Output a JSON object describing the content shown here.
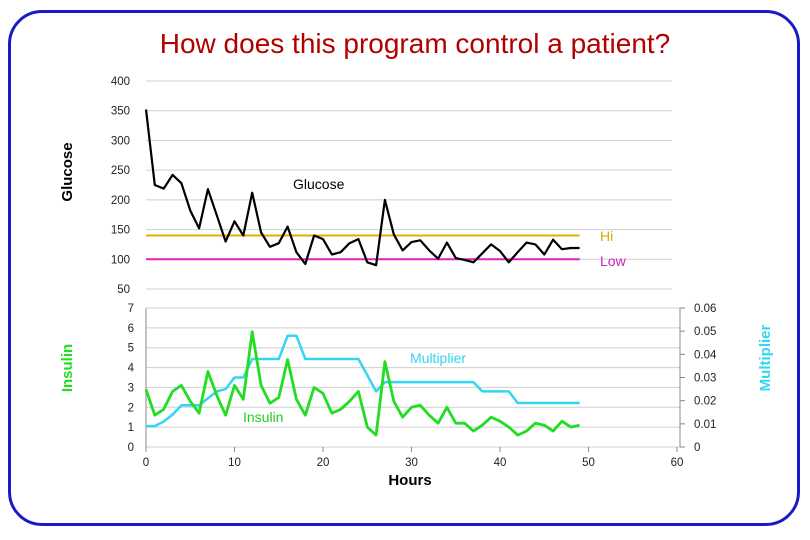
{
  "title": "How does this program control a patient?",
  "colors": {
    "title": "#b00000",
    "frame": "#1a1ac8",
    "glucose": "#000000",
    "hi": "#e0b000",
    "low": "#e020c0",
    "insulin": "#22dd22",
    "multiplier": "#33d6f0"
  },
  "chart_data": [
    {
      "type": "line",
      "ylabel": "Glucose",
      "ylim": [
        50,
        400
      ],
      "yticks": [
        "50",
        "100",
        "150",
        "200",
        "250",
        "300",
        "350",
        "400"
      ],
      "grid": true,
      "series": [
        {
          "name": "Glucose",
          "x": [
            0,
            1,
            2,
            3,
            4,
            5,
            6,
            7,
            8,
            9,
            10,
            11,
            12,
            13,
            14,
            15,
            16,
            17,
            18,
            19,
            20,
            21,
            22,
            23,
            24,
            25,
            26,
            27,
            28,
            29,
            30,
            31,
            32,
            33,
            34,
            35,
            36,
            37,
            38,
            39,
            40,
            41,
            42,
            43,
            44,
            45,
            46,
            47,
            48,
            49
          ],
          "y": [
            352,
            225,
            219,
            242,
            228,
            182,
            152,
            218,
            174,
            130,
            164,
            140,
            212,
            145,
            121,
            127,
            155,
            112,
            92,
            140,
            134,
            108,
            112,
            127,
            134,
            95,
            90,
            200,
            142,
            115,
            129,
            132,
            115,
            101,
            128,
            102,
            99,
            95,
            110,
            125,
            114,
            95,
            112,
            128,
            125,
            108,
            133,
            117,
            119,
            119
          ]
        },
        {
          "name": "Hi",
          "value": 140,
          "x": [
            0,
            49
          ]
        },
        {
          "name": "Low",
          "value": 100,
          "x": [
            0,
            49
          ]
        }
      ]
    },
    {
      "type": "line",
      "ylabel": "Insulin",
      "y2label": "Multiplier",
      "xlabel": "Hours",
      "xlim": [
        0,
        60
      ],
      "xticks": [
        "0",
        "10",
        "20",
        "30",
        "40",
        "50",
        "60"
      ],
      "ylim": [
        0,
        7
      ],
      "yticks": [
        "0",
        "1",
        "2",
        "3",
        "4",
        "5",
        "6",
        "7"
      ],
      "y2lim": [
        0,
        0.06
      ],
      "y2ticks": [
        "0",
        "0.01",
        "0.02",
        "0.03",
        "0.04",
        "0.05",
        "0.06"
      ],
      "grid": true,
      "series": [
        {
          "name": "Insulin",
          "axis": "left",
          "x": [
            0,
            1,
            2,
            3,
            4,
            5,
            6,
            7,
            8,
            9,
            10,
            11,
            12,
            13,
            14,
            15,
            16,
            17,
            18,
            19,
            20,
            21,
            22,
            23,
            24,
            25,
            26,
            27,
            28,
            29,
            30,
            31,
            32,
            33,
            34,
            35,
            36,
            37,
            38,
            39,
            40,
            41,
            42,
            43,
            44,
            45,
            46,
            47,
            48,
            49
          ],
          "y": [
            2.9,
            1.6,
            1.9,
            2.8,
            3.1,
            2.3,
            1.7,
            3.8,
            2.6,
            1.6,
            3.1,
            2.4,
            5.8,
            3.1,
            2.2,
            2.5,
            4.4,
            2.4,
            1.6,
            3.0,
            2.7,
            1.7,
            1.9,
            2.3,
            2.8,
            1.0,
            0.6,
            4.3,
            2.3,
            1.5,
            2.0,
            2.1,
            1.6,
            1.2,
            2.0,
            1.2,
            1.2,
            0.8,
            1.1,
            1.5,
            1.3,
            1.0,
            0.6,
            0.8,
            1.2,
            1.1,
            0.8,
            1.3,
            1.0,
            1.1
          ]
        },
        {
          "name": "Multiplier",
          "axis": "right",
          "x": [
            0,
            1,
            2,
            3,
            4,
            5,
            6,
            7,
            8,
            9,
            10,
            11,
            12,
            13,
            14,
            15,
            16,
            17,
            18,
            19,
            20,
            21,
            22,
            23,
            24,
            25,
            26,
            27,
            28,
            29,
            30,
            31,
            32,
            33,
            34,
            35,
            36,
            37,
            38,
            39,
            40,
            41,
            42,
            43,
            44,
            45,
            46,
            47,
            48,
            49
          ],
          "y": [
            0.009,
            0.009,
            0.011,
            0.014,
            0.018,
            0.018,
            0.018,
            0.021,
            0.024,
            0.025,
            0.03,
            0.03,
            0.038,
            0.038,
            0.038,
            0.038,
            0.048,
            0.048,
            0.038,
            0.038,
            0.038,
            0.038,
            0.038,
            0.038,
            0.038,
            0.031,
            0.024,
            0.028,
            0.028,
            0.028,
            0.028,
            0.028,
            0.028,
            0.028,
            0.028,
            0.028,
            0.028,
            0.028,
            0.024,
            0.024,
            0.024,
            0.024,
            0.019,
            0.019,
            0.019,
            0.019,
            0.019,
            0.019,
            0.019,
            0.019
          ]
        }
      ]
    }
  ]
}
